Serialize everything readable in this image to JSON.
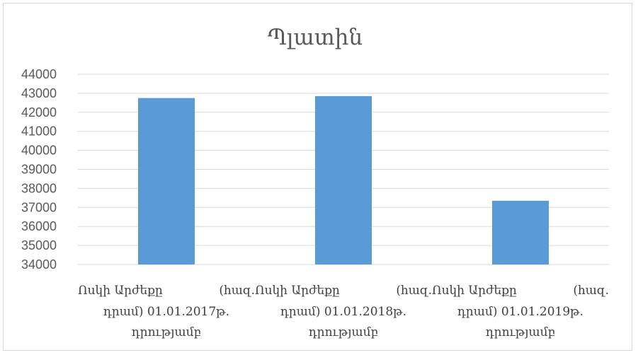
{
  "chart_data": {
    "type": "bar",
    "title": "Պլատին",
    "categories": [
      "Ոսկի Արժեքը (հազ. դրամ) 01.01.2017թ. դրությամբ",
      "Ոսկի Արժեքը (հազ. դրամ) 01.01.2018թ. դրությամբ",
      "Ոսկի Արժեքը (հազ. դրամ) 01.01.2019թ. դրությամբ"
    ],
    "category_lines": [
      [
        "Ոսկի Արժեքը",
        "(հազ.",
        "դրամ) 01.01.2017թ.",
        "դրությամբ"
      ],
      [
        "Ոսկի Արժեքը",
        "(հազ.",
        "դրամ) 01.01.2018թ.",
        "դրությամբ"
      ],
      [
        "Ոսկի Արժեքը",
        "(հազ.",
        "դրամ) 01.01.2019թ.",
        "դրությամբ"
      ]
    ],
    "values": [
      42750,
      42850,
      37350
    ],
    "ylim": [
      34000,
      44000
    ],
    "yticks": [
      "34000",
      "35000",
      "36000",
      "37000",
      "38000",
      "39000",
      "40000",
      "41000",
      "42000",
      "43000",
      "44000"
    ],
    "grid": true,
    "legend": "none",
    "bar_color": "#5b9bd5",
    "xlabel": "",
    "ylabel": ""
  }
}
